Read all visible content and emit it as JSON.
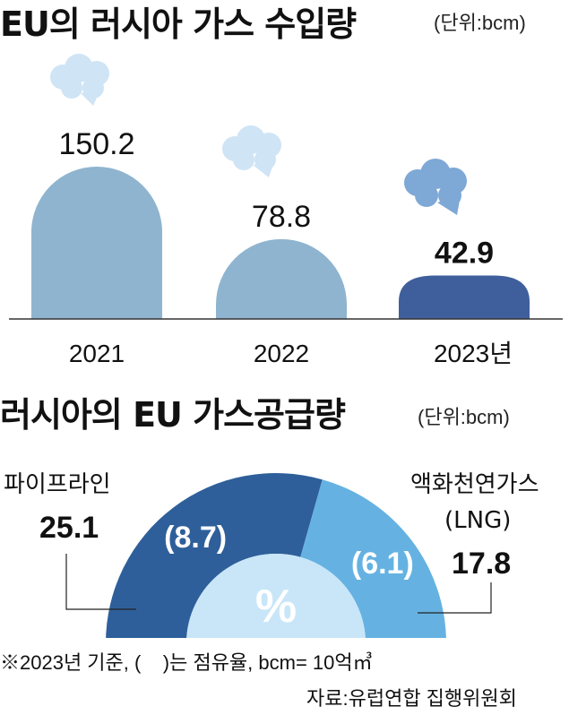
{
  "chart1": {
    "title": "EU의 러시아 가스 수입량",
    "unit": "(단위:bcm)",
    "chart_data": {
      "type": "bar",
      "categories": [
        "2021",
        "2022",
        "2023년"
      ],
      "values": [
        150.2,
        78.8,
        42.9
      ],
      "value_labels": [
        "150.2",
        "78.8",
        "42.9"
      ],
      "colors": [
        "#8fb4cf",
        "#8fb4cf",
        "#3f5f9c"
      ],
      "ylim": [
        0,
        160
      ]
    }
  },
  "chart2": {
    "title": "러시아의 EU 가스공급량",
    "unit": "(단위:bcm)",
    "center_label": "%",
    "chart_data": {
      "type": "pie",
      "series": [
        {
          "name": "파이프라인",
          "total": "25.1",
          "share": 8.7,
          "share_label": "(8.7)",
          "color": "#2e5f9a"
        },
        {
          "name": "액화천연가스",
          "name2": "(LNG)",
          "total": "17.8",
          "share": 6.1,
          "share_label": "(6.1)",
          "color": "#65b2e2"
        }
      ]
    }
  },
  "footer": {
    "note": "※2023년 기준, (    )는 점유율, bcm= 10억㎥",
    "source": "자료:유럽연합 집행위원회"
  }
}
